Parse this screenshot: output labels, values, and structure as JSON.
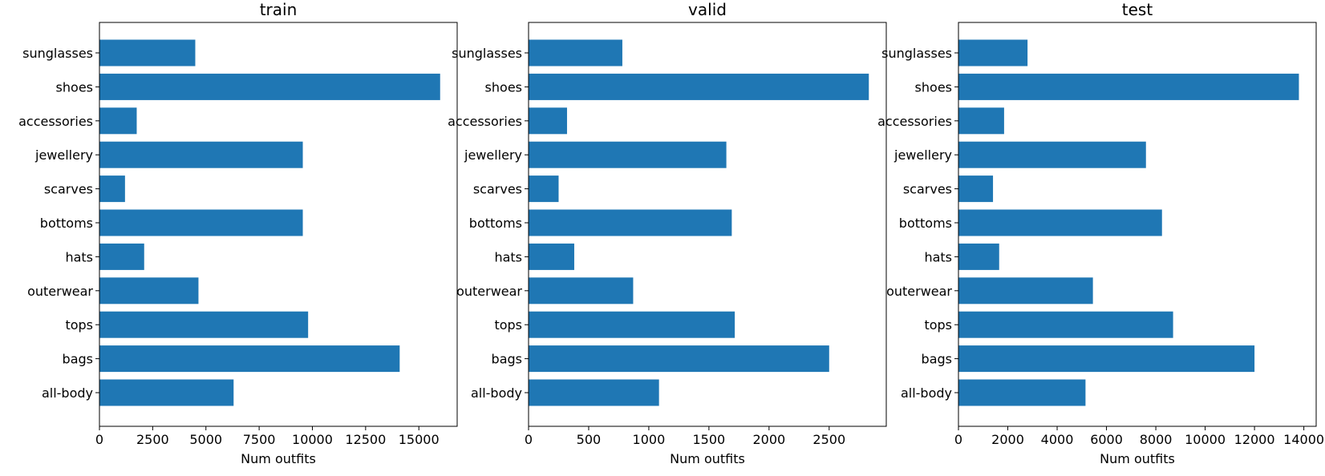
{
  "chart_data": [
    {
      "type": "bar",
      "orientation": "horizontal",
      "title": "train",
      "xlabel": "Num outfits",
      "ylabel": "",
      "categories": [
        "all-body",
        "bags",
        "tops",
        "outerwear",
        "hats",
        "bottoms",
        "scarves",
        "jewellery",
        "accessories",
        "shoes",
        "sunglasses"
      ],
      "values": [
        6300,
        14100,
        9800,
        4650,
        2100,
        9550,
        1200,
        9550,
        1750,
        16000,
        4500
      ],
      "xlim": [
        0,
        16800
      ],
      "xticks": [
        0,
        2500,
        5000,
        7500,
        10000,
        12500,
        15000
      ],
      "color": "#1f77b4",
      "grid": false
    },
    {
      "type": "bar",
      "orientation": "horizontal",
      "title": "valid",
      "xlabel": "Num outfits",
      "ylabel": "",
      "categories": [
        "all-body",
        "bags",
        "tops",
        "outerwear",
        "hats",
        "bottoms",
        "scarves",
        "jewellery",
        "accessories",
        "shoes",
        "sunglasses"
      ],
      "values": [
        1085,
        2500,
        1715,
        870,
        380,
        1690,
        250,
        1645,
        320,
        2830,
        780
      ],
      "xlim": [
        0,
        2975
      ],
      "xticks": [
        0,
        500,
        1000,
        1500,
        2000,
        2500
      ],
      "color": "#1f77b4",
      "grid": false
    },
    {
      "type": "bar",
      "orientation": "horizontal",
      "title": "test",
      "xlabel": "Num outfits",
      "ylabel": "",
      "categories": [
        "all-body",
        "bags",
        "tops",
        "outerwear",
        "hats",
        "bottoms",
        "scarves",
        "jewellery",
        "accessories",
        "shoes",
        "sunglasses"
      ],
      "values": [
        5150,
        12000,
        8700,
        5450,
        1650,
        8250,
        1400,
        7600,
        1850,
        13800,
        2800
      ],
      "xlim": [
        0,
        14500
      ],
      "xticks": [
        0,
        2000,
        4000,
        6000,
        8000,
        10000,
        12000,
        14000
      ],
      "color": "#1f77b4",
      "grid": false
    }
  ]
}
